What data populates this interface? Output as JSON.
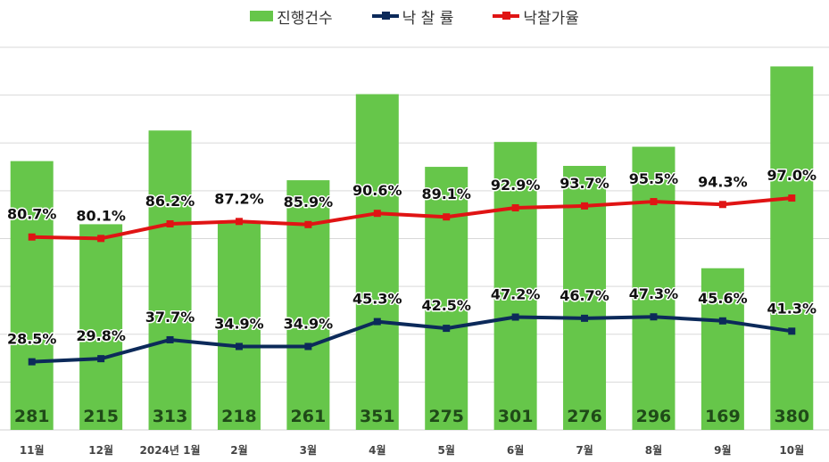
{
  "legend": {
    "bars": "진행건수",
    "line1": "낙 찰 률",
    "line2": "낙찰가율"
  },
  "colors": {
    "bar": "#66c64a",
    "line1": "#0c2a5a",
    "line2": "#e01414",
    "grid": "#d9d9d9",
    "bar_label": "#1f4a18"
  },
  "chart_data": {
    "type": "bar+line",
    "title": "",
    "categories": [
      "11월",
      "12월",
      "2024년 1월",
      "2월",
      "3월",
      "4월",
      "5월",
      "6월",
      "7월",
      "8월",
      "9월",
      "10월"
    ],
    "series": [
      {
        "name": "진행건수",
        "type": "bar",
        "axis": "primary",
        "values": [
          281,
          215,
          313,
          218,
          261,
          351,
          275,
          301,
          276,
          296,
          169,
          380
        ]
      },
      {
        "name": "낙 찰 률",
        "type": "line",
        "axis": "secondary",
        "unit": "%",
        "values": [
          28.5,
          29.8,
          37.7,
          34.9,
          34.9,
          45.3,
          42.5,
          47.2,
          46.7,
          47.3,
          45.6,
          41.3
        ]
      },
      {
        "name": "낙찰가율",
        "type": "line",
        "axis": "secondary",
        "unit": "%",
        "values": [
          80.7,
          80.1,
          86.2,
          87.2,
          85.9,
          90.6,
          89.1,
          92.9,
          93.7,
          95.5,
          94.3,
          97.0
        ]
      }
    ],
    "primary_ylim": [
      0,
      400
    ],
    "secondary_ylim": [
      0,
      100
    ],
    "grid": true,
    "legend_position": "top",
    "xlabel": "",
    "ylabel": ""
  }
}
